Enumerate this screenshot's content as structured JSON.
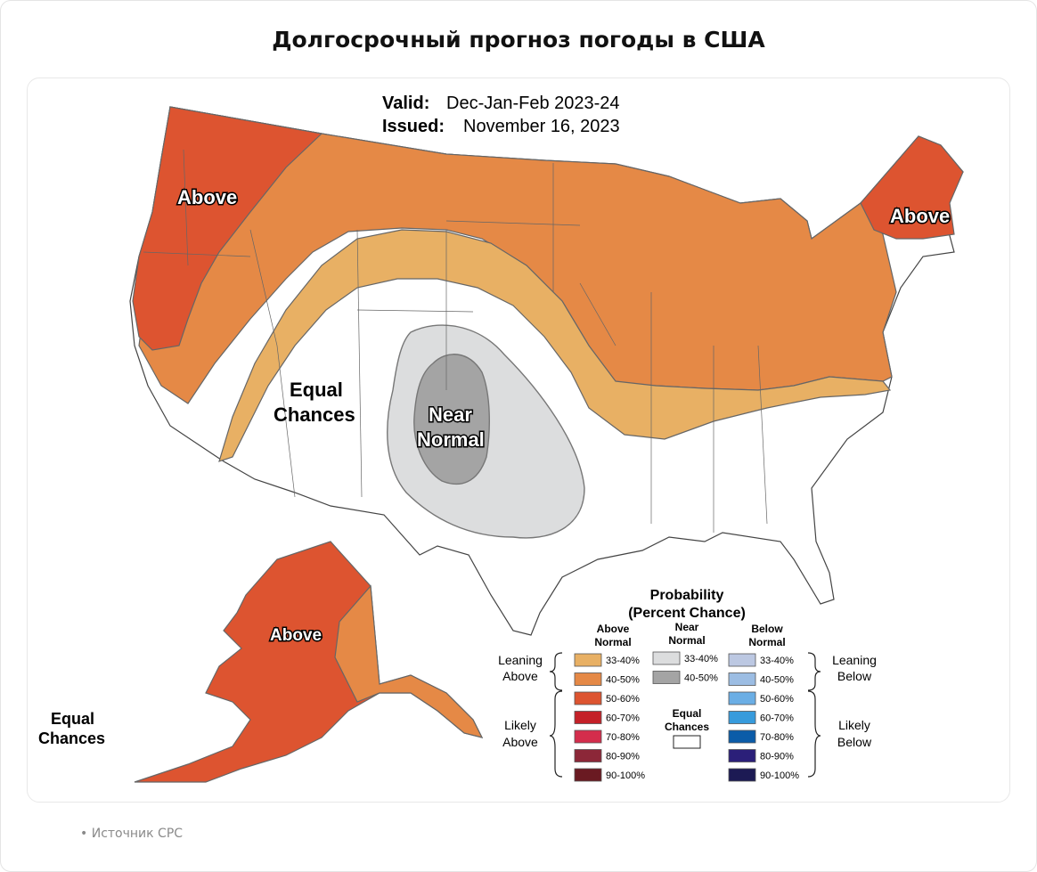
{
  "page": {
    "title": "Долгосрочный прогноз погоды в США",
    "source": "Источник CPC"
  },
  "map": {
    "valid_label": "Valid:",
    "valid_value": "Dec-Jan-Feb 2023-24",
    "issued_label": "Issued:",
    "issued_value": "November 16, 2023",
    "region_labels": {
      "west_above": "Above",
      "northeast_above": "Above",
      "alaska_above": "Above",
      "equal_line1": "Equal",
      "equal_line2": "Chances",
      "near_line1": "Near",
      "near_line2": "Normal",
      "ak_equal_line1": "Equal",
      "ak_equal_line2": "Chances"
    }
  },
  "legend": {
    "title_line1": "Probability",
    "title_line2": "(Percent Chance)",
    "above_header_1": "Above",
    "above_header_2": "Normal",
    "near_header_1": "Near",
    "near_header_2": "Normal",
    "below_header_1": "Below",
    "below_header_2": "Normal",
    "leaning_above_1": "Leaning",
    "leaning_above_2": "Above",
    "likely_above_1": "Likely",
    "likely_above_2": "Above",
    "leaning_below_1": "Leaning",
    "leaning_below_2": "Below",
    "likely_below_1": "Likely",
    "likely_below_2": "Below",
    "equal_1": "Equal",
    "equal_2": "Chances",
    "above": [
      {
        "range": "33-40%",
        "color": "#E8B064"
      },
      {
        "range": "40-50%",
        "color": "#E58946"
      },
      {
        "range": "50-60%",
        "color": "#DD5430"
      },
      {
        "range": "60-70%",
        "color": "#C42128"
      },
      {
        "range": "70-80%",
        "color": "#D42D4C"
      },
      {
        "range": "80-90%",
        "color": "#8C2738"
      },
      {
        "range": "90-100%",
        "color": "#6A1A22"
      }
    ],
    "near": [
      {
        "range": "33-40%",
        "color": "#DCDDDE"
      },
      {
        "range": "40-50%",
        "color": "#A4A4A4"
      }
    ],
    "below": [
      {
        "range": "33-40%",
        "color": "#BCC8E2"
      },
      {
        "range": "40-50%",
        "color": "#9CBDE3"
      },
      {
        "range": "50-60%",
        "color": "#6BAEE5"
      },
      {
        "range": "60-70%",
        "color": "#379BDC"
      },
      {
        "range": "70-80%",
        "color": "#0B5CA8"
      },
      {
        "range": "80-90%",
        "color": "#2B1F79"
      },
      {
        "range": "90-100%",
        "color": "#1C1A54"
      }
    ]
  }
}
